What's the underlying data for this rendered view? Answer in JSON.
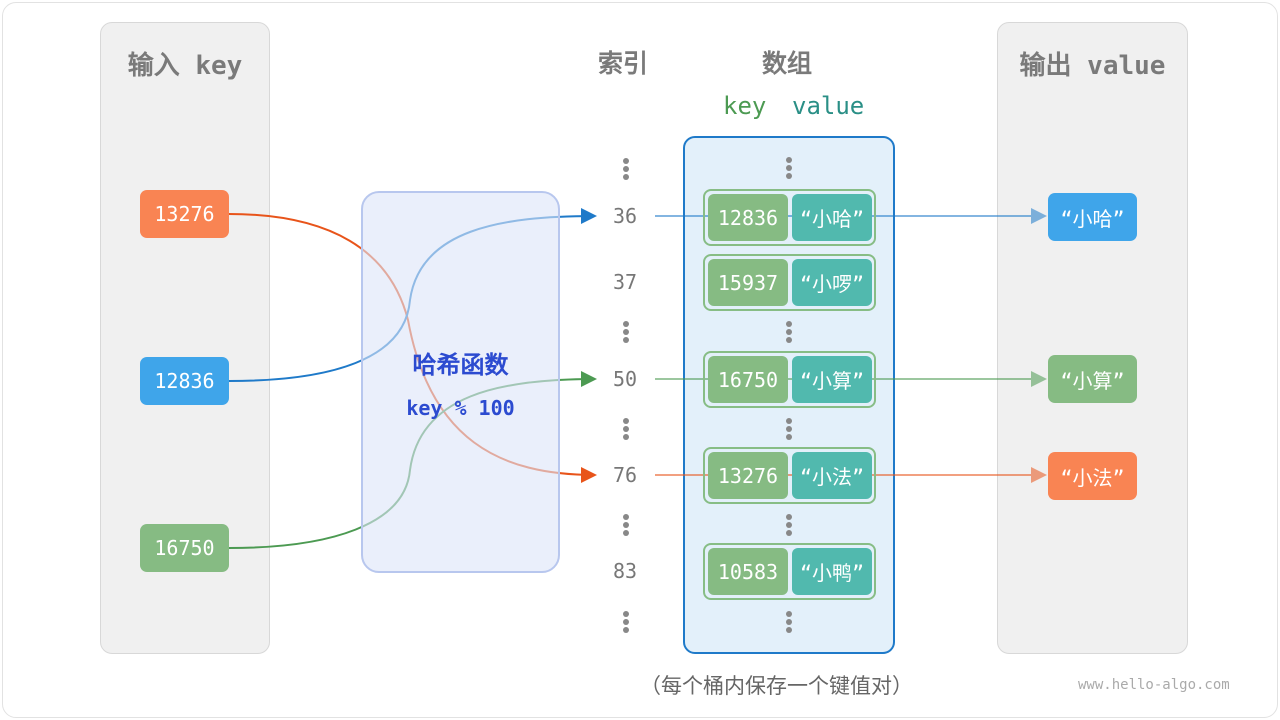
{
  "input_panel": {
    "title": "输入 key",
    "keys": [
      {
        "label": "13276",
        "color": "#f98453"
      },
      {
        "label": "12836",
        "color": "#3fa5ea"
      },
      {
        "label": "16750",
        "color": "#86bb83"
      }
    ]
  },
  "hash_function": {
    "title": "哈希函数",
    "formula": "key % 100"
  },
  "index_header": "索引",
  "array_header": "数组",
  "array_subheader": {
    "key": "key",
    "value": "value"
  },
  "buckets": [
    {
      "index": "36",
      "key": "12836",
      "value": "“小哈”"
    },
    {
      "index": "37",
      "key": "15937",
      "value": "“小啰”"
    },
    {
      "index": "50",
      "key": "16750",
      "value": "“小算”"
    },
    {
      "index": "76",
      "key": "13276",
      "value": "“小法”"
    },
    {
      "index": "83",
      "key": "10583",
      "value": "“小鸭”"
    }
  ],
  "output_panel": {
    "title": "输出 value",
    "values": [
      {
        "label": "“小哈”",
        "color": "#3fa5ea"
      },
      {
        "label": "“小算”",
        "color": "#86bb83"
      },
      {
        "label": "“小法”",
        "color": "#f98453"
      }
    ]
  },
  "caption": "（每个桶内保存一个键值对）",
  "watermark": "www.hello-algo.com",
  "colors": {
    "orange_line": "#e8541a",
    "blue_line": "#1f7ac9",
    "green_line": "#4c9a52",
    "key_green": "#4c9a52",
    "value_teal": "#2a8f86"
  }
}
